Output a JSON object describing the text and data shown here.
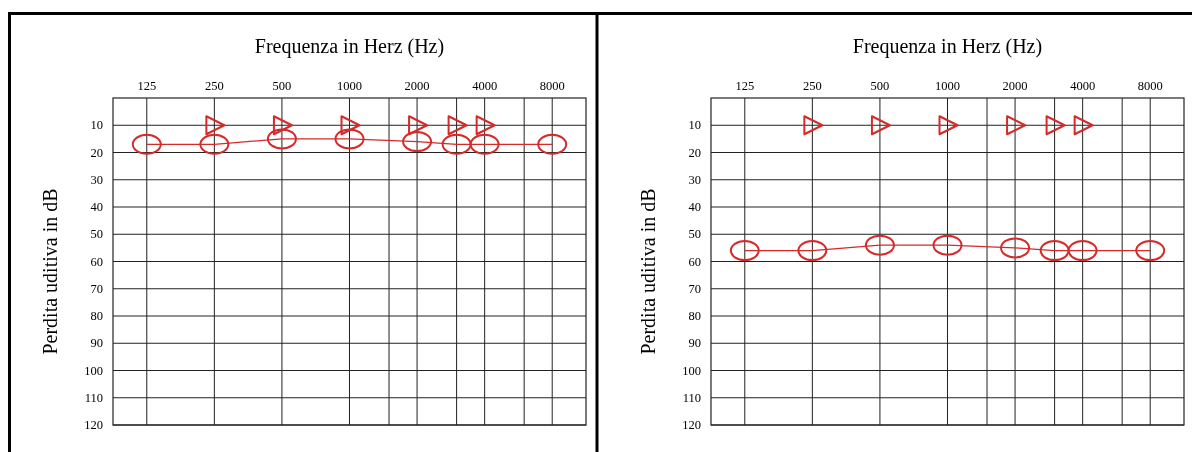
{
  "chart_data": [
    {
      "type": "line",
      "xlabel": "Frequenza in Herz (Hz)",
      "ylabel": "Perdita uditiva in dB",
      "log": "x",
      "grid": true,
      "xlim": [
        88.39,
        11313.7
      ],
      "ylim": [
        120,
        0
      ],
      "xticks": [
        125,
        250,
        500,
        1000,
        {
          "value": 1500,
          "label": null
        },
        2000,
        {
          "value": 3000,
          "label": null
        },
        4000,
        {
          "value": 6000,
          "label": null
        },
        8000
      ],
      "yticks": [
        10,
        20,
        30,
        40,
        50,
        60,
        70,
        80,
        90,
        100,
        110,
        120
      ],
      "series": [
        {
          "type": "line",
          "marker": "circle",
          "color": "#d42a2a",
          "x": [
            125,
            250,
            500,
            1000,
            2000,
            3000,
            4000,
            8000
          ],
          "values": [
            17,
            17,
            15,
            15,
            16,
            17,
            17,
            17
          ]
        },
        {
          "type": "scatter",
          "marker": "triangle",
          "color": "#d42a2a",
          "x": [
            250,
            500,
            1000,
            2000,
            3000,
            4000
          ],
          "values": [
            10,
            10,
            10,
            10,
            10,
            10
          ]
        }
      ]
    },
    {
      "type": "line",
      "xlabel": "Frequenza in Herz (Hz)",
      "ylabel": "Perdita uditiva in dB",
      "log": "x",
      "grid": true,
      "xlim": [
        88.39,
        11313.7
      ],
      "ylim": [
        120,
        0
      ],
      "xticks": [
        125,
        250,
        500,
        1000,
        {
          "value": 1500,
          "label": null
        },
        2000,
        {
          "value": 3000,
          "label": null
        },
        4000,
        {
          "value": 6000,
          "label": null
        },
        8000
      ],
      "yticks": [
        10,
        20,
        30,
        40,
        50,
        60,
        70,
        80,
        90,
        100,
        110,
        120
      ],
      "series": [
        {
          "type": "line",
          "marker": "circle",
          "color": "#d42a2a",
          "x": [
            125,
            250,
            500,
            1000,
            2000,
            3000,
            4000,
            8000
          ],
          "values": [
            56,
            56,
            54,
            54,
            55,
            56,
            56,
            56
          ]
        },
        {
          "type": "scatter",
          "marker": "triangle",
          "color": "#d42a2a",
          "x": [
            250,
            500,
            1000,
            2000,
            3000,
            4000
          ],
          "values": [
            10,
            10,
            10,
            10,
            10,
            10
          ]
        }
      ]
    }
  ]
}
